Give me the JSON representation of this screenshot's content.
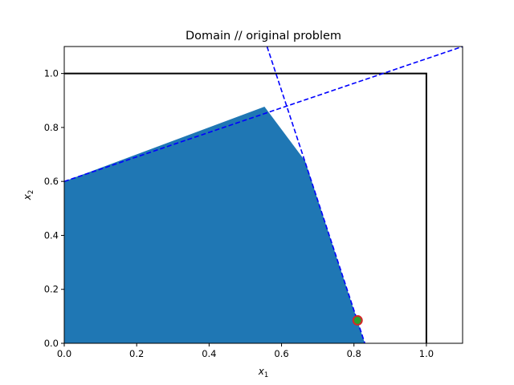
{
  "chart_data": {
    "type": "area",
    "title": "Domain // original problem",
    "xlabel_main": "x",
    "xlabel_sub": "1",
    "ylabel_main": "x",
    "ylabel_sub": "2",
    "xlim": [
      0,
      1.1
    ],
    "ylim": [
      0,
      1.1
    ],
    "xticks": [
      {
        "value": 0.0,
        "label": "0.0"
      },
      {
        "value": 0.2,
        "label": "0.2"
      },
      {
        "value": 0.4,
        "label": "0.4"
      },
      {
        "value": 0.6,
        "label": "0.6"
      },
      {
        "value": 0.8,
        "label": "0.8"
      },
      {
        "value": 1.0,
        "label": "1.0"
      }
    ],
    "yticks": [
      {
        "value": 0.0,
        "label": "0.0"
      },
      {
        "value": 0.2,
        "label": "0.2"
      },
      {
        "value": 0.4,
        "label": "0.4"
      },
      {
        "value": 0.6,
        "label": "0.6"
      },
      {
        "value": 0.8,
        "label": "0.8"
      },
      {
        "value": 1.0,
        "label": "1.0"
      }
    ],
    "grid": false,
    "feasible_region": {
      "color": "#1f77b4",
      "vertices": [
        [
          0,
          0
        ],
        [
          0,
          0.6
        ],
        [
          0.553,
          0.877
        ],
        [
          0.665,
          0.676
        ],
        [
          0.83,
          0
        ],
        [
          0,
          0
        ]
      ]
    },
    "box": {
      "color": "#000000",
      "points": [
        [
          0,
          1.0
        ],
        [
          1.0,
          1.0
        ],
        [
          1.0,
          0
        ]
      ]
    },
    "constraint_lines": [
      {
        "color": "#0000ff",
        "style": "dashed",
        "points": [
          [
            0,
            0.6
          ],
          [
            1.1,
            1.1
          ]
        ]
      },
      {
        "color": "#0000ff",
        "style": "dashed",
        "points": [
          [
            0.56,
            1.1
          ],
          [
            0.83,
            0
          ]
        ]
      }
    ],
    "optimum_point": {
      "x": 0.81,
      "y": 0.085,
      "edge_color": "#d62728",
      "face_color": "#2ca02c"
    }
  }
}
